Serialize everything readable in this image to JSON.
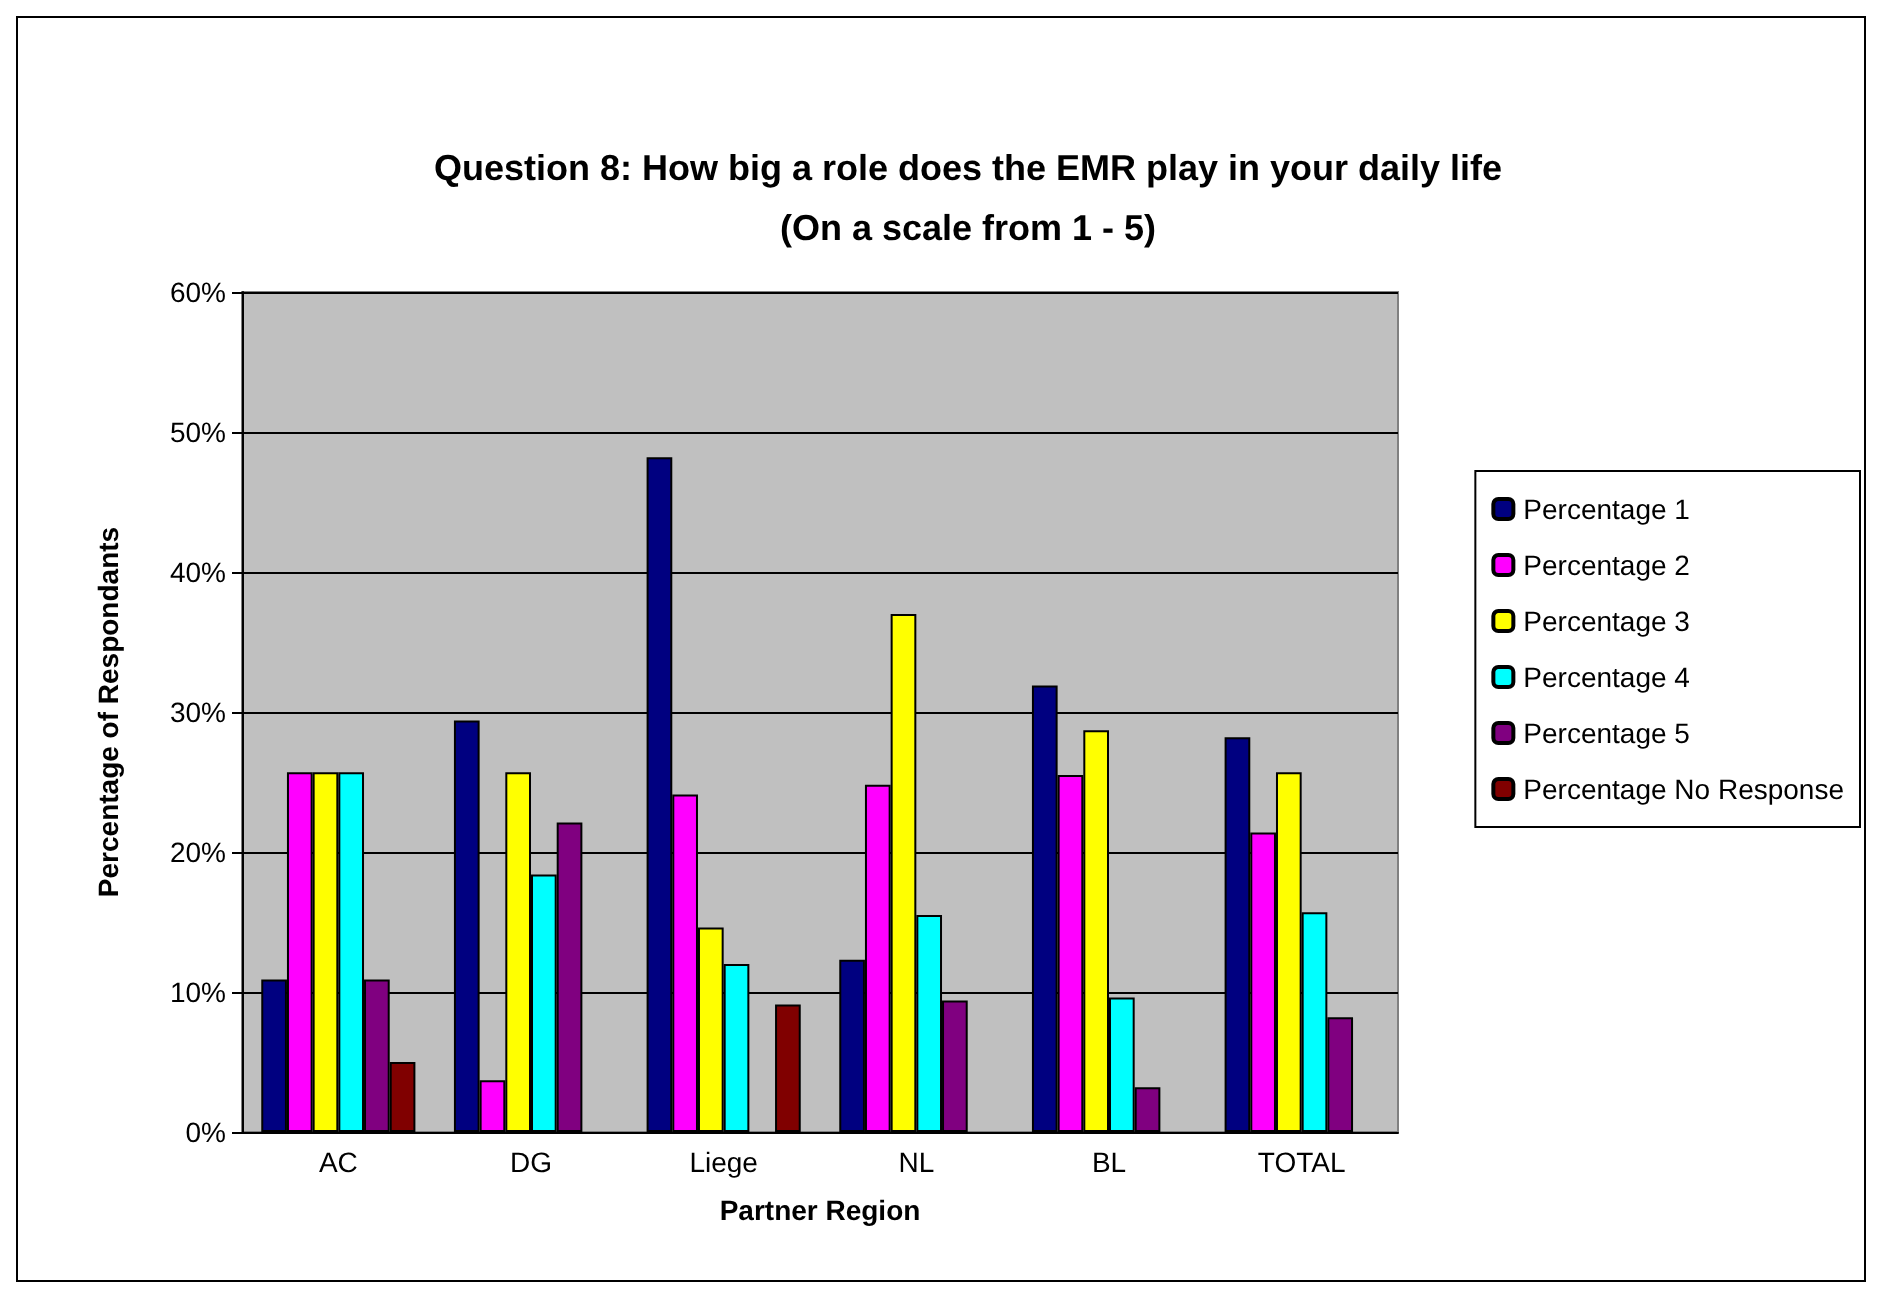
{
  "chart_data": {
    "type": "bar",
    "title": "Question 8: How big a role does the EMR play in your daily life\n(On a scale from 1 - 5)",
    "xlabel": "Partner Region",
    "ylabel": "Percentage of Respondants",
    "categories": [
      "AC",
      "DG",
      "Liege",
      "NL",
      "BL",
      "TOTAL"
    ],
    "series": [
      {
        "name": "Percentage 1",
        "color": "#000080",
        "values": [
          10.9,
          29.4,
          48.2,
          12.3,
          31.9,
          28.2
        ]
      },
      {
        "name": "Percentage 2",
        "color": "#ff00ff",
        "values": [
          25.7,
          3.7,
          24.1,
          24.8,
          25.5,
          21.4
        ]
      },
      {
        "name": "Percentage 3",
        "color": "#ffff00",
        "values": [
          25.7,
          25.7,
          14.6,
          37.0,
          28.7,
          25.7
        ]
      },
      {
        "name": "Percentage 4",
        "color": "#00ffff",
        "values": [
          25.7,
          18.4,
          12.0,
          15.5,
          9.6,
          15.7
        ]
      },
      {
        "name": "Percentage 5",
        "color": "#800080",
        "values": [
          10.9,
          22.1,
          null,
          9.4,
          3.2,
          8.2
        ]
      },
      {
        "name": "Percentage No Response",
        "color": "#800000",
        "values": [
          5.0,
          null,
          9.1,
          null,
          null,
          null
        ]
      }
    ],
    "ylim": [
      0,
      60
    ],
    "yticks": [
      {
        "value": 0,
        "label": "0%"
      },
      {
        "value": 10,
        "label": "10%"
      },
      {
        "value": 20,
        "label": "20%"
      },
      {
        "value": 30,
        "label": "30%"
      },
      {
        "value": 40,
        "label": "40%"
      },
      {
        "value": 50,
        "label": "50%"
      },
      {
        "value": 60,
        "label": "60%"
      }
    ],
    "grid": "y",
    "legend": "right"
  }
}
